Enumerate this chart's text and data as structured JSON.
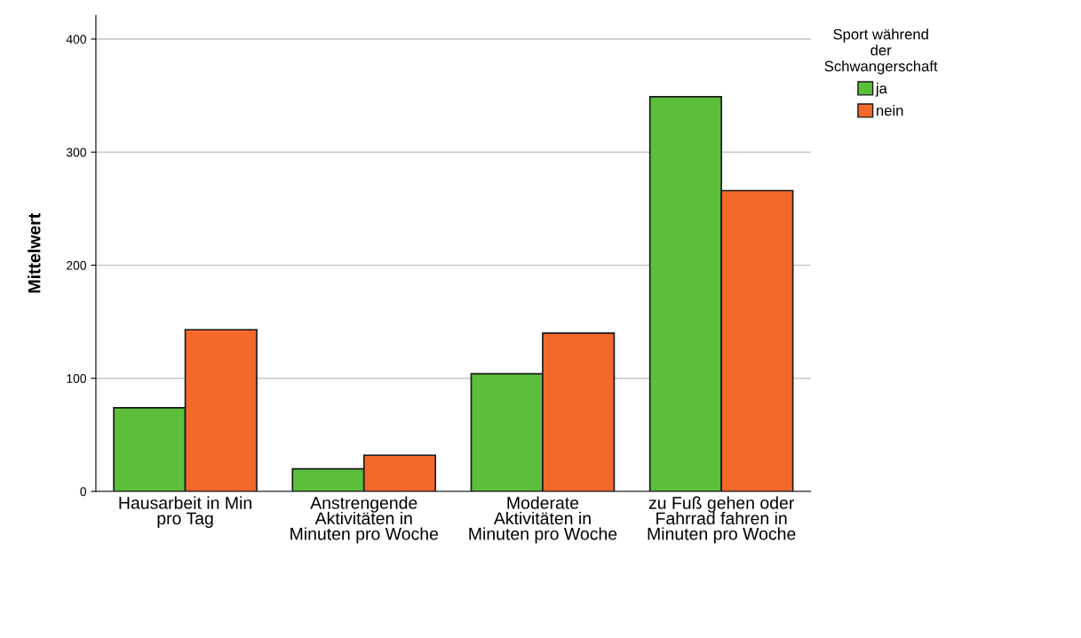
{
  "chart_data": {
    "type": "bar",
    "ylabel": "Mittelwert",
    "legend_title": "Sport während der Schwangerschaft",
    "categories": [
      "Hausarbeit in Min pro Tag",
      "Anstrengende Aktivitäten in Minuten pro Woche",
      "Moderate Aktivitäten in Minuten pro Woche",
      "zu Fuß gehen oder Fahrrad fahren in Minuten pro Woche"
    ],
    "series": [
      {
        "name": "ja",
        "color": "#5bbf3c",
        "values": [
          74,
          20,
          104,
          349
        ]
      },
      {
        "name": "nein",
        "color": "#f3682b",
        "values": [
          143,
          32,
          140,
          266
        ]
      }
    ],
    "ylim": [
      0,
      421
    ],
    "yticks": [
      0,
      100,
      200,
      300,
      400
    ],
    "grid": "y",
    "legend": "top right"
  }
}
